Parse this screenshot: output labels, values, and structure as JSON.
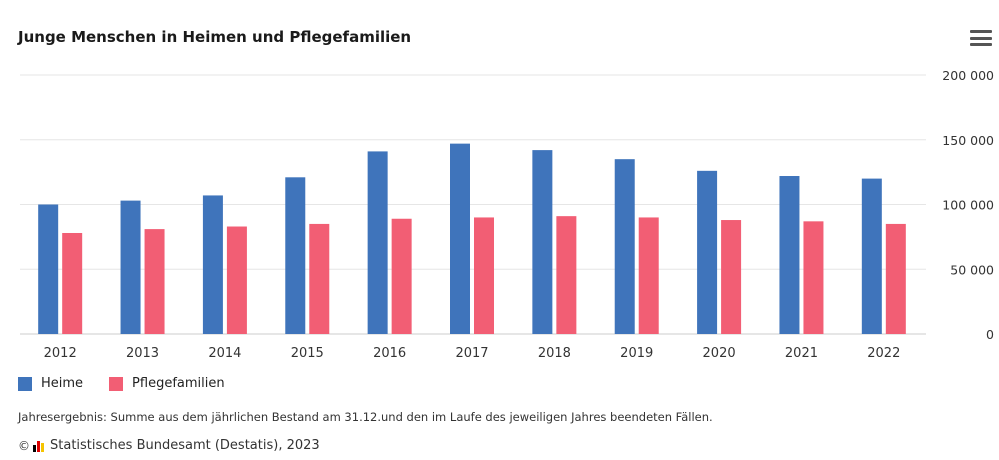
{
  "title": "Junge Menschen in Heimen und Pflegefamilien",
  "menu_icon": "hamburger-menu-icon",
  "footnote": "Jahresergebnis: Summe aus dem jährlichen Bestand am 31.12.und den im Laufe des jeweiligen Jahres beendeten Fällen.",
  "source": "Statistisches Bundesamt (Destatis), 2023",
  "copyright_symbol": "©",
  "colors": {
    "heime": "#3f74bb",
    "pflege": "#f25e74",
    "grid": "#e6e6e6"
  },
  "chart_data": {
    "type": "bar",
    "categories": [
      "2012",
      "2013",
      "2014",
      "2015",
      "2016",
      "2017",
      "2018",
      "2019",
      "2020",
      "2021",
      "2022"
    ],
    "series": [
      {
        "name": "Heime",
        "values": [
          100000,
          103000,
          107000,
          121000,
          141000,
          147000,
          142000,
          135000,
          126000,
          122000,
          120000
        ]
      },
      {
        "name": "Pflegefamilien",
        "values": [
          78000,
          81000,
          83000,
          85000,
          89000,
          90000,
          91000,
          90000,
          88000,
          87000,
          85000
        ]
      }
    ],
    "ylim": [
      0,
      200000
    ],
    "yticks": [
      0,
      50000,
      100000,
      150000,
      200000
    ],
    "ytick_labels": [
      "0",
      "50 000",
      "100 000",
      "150 000",
      "200 000"
    ],
    "grid": true,
    "legend_position": "bottom-left"
  }
}
